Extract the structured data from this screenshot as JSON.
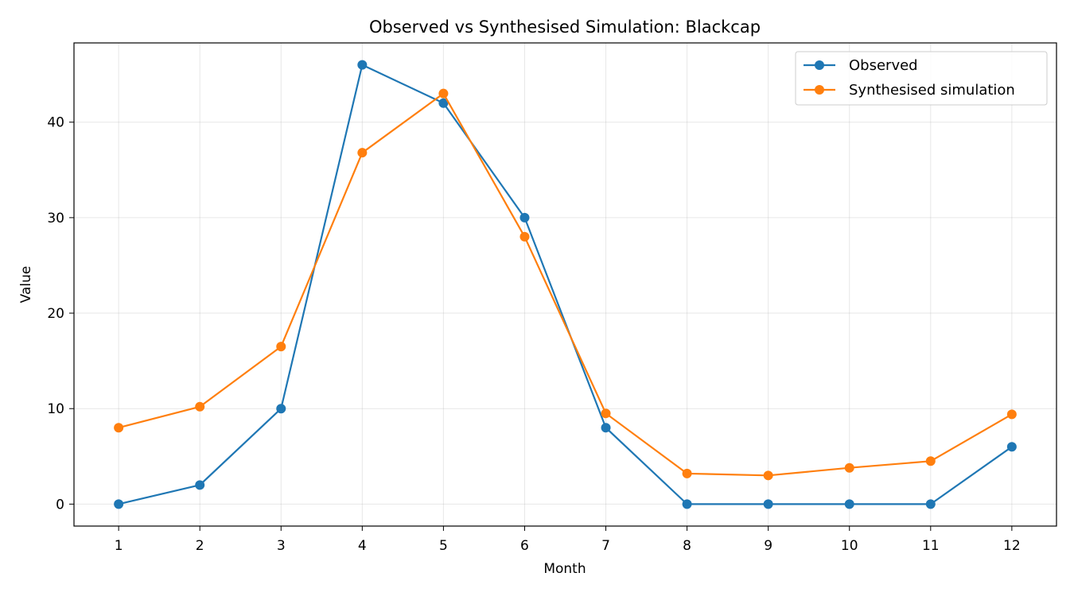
{
  "chart_data": {
    "type": "line",
    "title": "Observed vs Synthesised Simulation: Blackcap",
    "xlabel": "Month",
    "ylabel": "Value",
    "x": [
      1,
      2,
      3,
      4,
      5,
      6,
      7,
      8,
      9,
      10,
      11,
      12
    ],
    "xticks": [
      "1",
      "2",
      "3",
      "4",
      "5",
      "6",
      "7",
      "8",
      "9",
      "10",
      "11",
      "12"
    ],
    "xlim": [
      0.45,
      12.55
    ],
    "ylim": [
      -2.3,
      48.3
    ],
    "yticks": [
      0,
      10,
      20,
      30,
      40
    ],
    "grid": true,
    "legend_position": "top-right",
    "series": [
      {
        "name": "Observed",
        "color": "#1f77b4",
        "values": [
          0,
          2,
          10,
          46,
          42,
          30,
          8,
          0,
          0,
          0,
          0,
          6
        ]
      },
      {
        "name": "Synthesised simulation",
        "color": "#ff7f0e",
        "values": [
          8,
          10.2,
          16.5,
          36.8,
          43,
          28,
          9.5,
          3.2,
          3,
          3.8,
          4.5,
          9.4
        ]
      }
    ]
  }
}
